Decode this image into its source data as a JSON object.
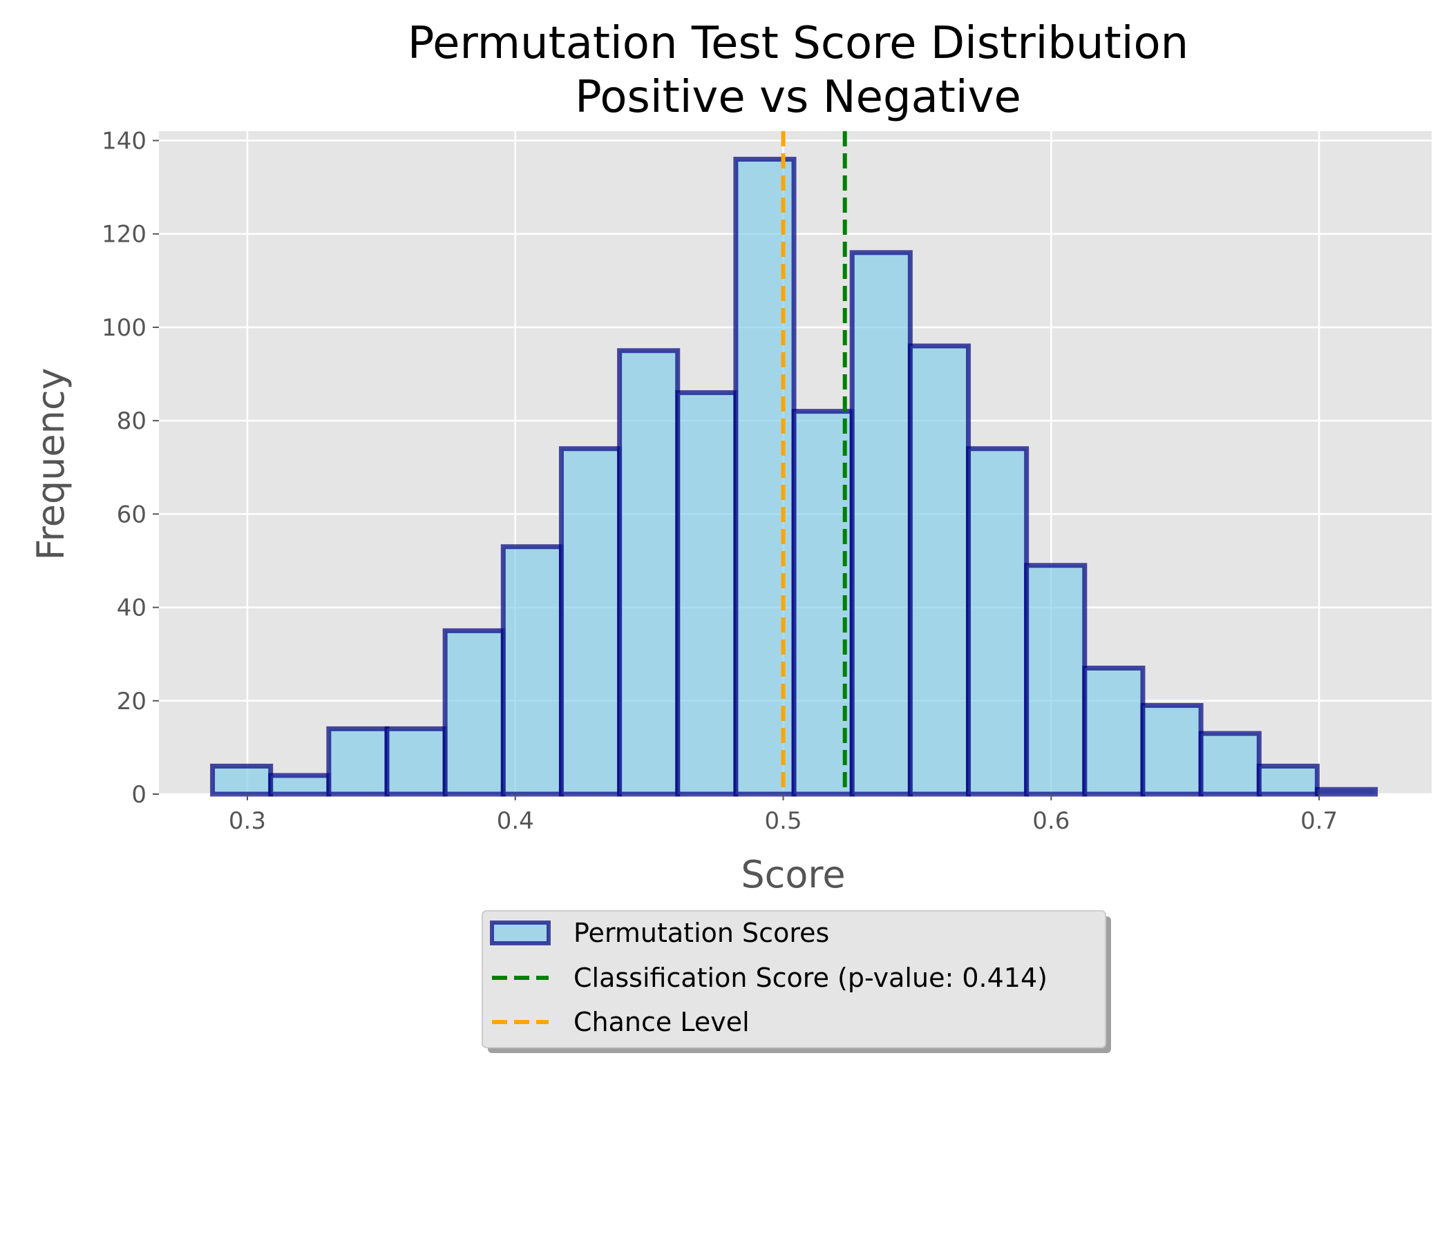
{
  "chart_data": {
    "type": "bar",
    "title": "Permutation Test Score Distribution",
    "subtitle": "Positive vs Negative",
    "xlabel": "Score",
    "ylabel": "Frequency",
    "xlim": [
      0.267,
      0.742
    ],
    "ylim": [
      0,
      142
    ],
    "xticks": [
      "0.3",
      "0.4",
      "0.5",
      "0.6",
      "0.7"
    ],
    "yticks": [
      "0",
      "20",
      "40",
      "60",
      "80",
      "100",
      "120",
      "140"
    ],
    "grid": true,
    "legend_position": "below plot, center",
    "bin_edges": [
      0.287,
      0.3087,
      0.3304,
      0.3521,
      0.3738,
      0.3955,
      0.4172,
      0.4389,
      0.4606,
      0.4823,
      0.504,
      0.5257,
      0.5474,
      0.5691,
      0.5908,
      0.6125,
      0.6342,
      0.6559,
      0.6776,
      0.6993,
      0.721
    ],
    "counts": [
      6,
      4,
      14,
      14,
      35,
      53,
      74,
      95,
      86,
      136,
      82,
      116,
      96,
      74,
      49,
      27,
      19,
      13,
      6,
      1
    ],
    "series": [
      {
        "name": "Permutation Scores",
        "kind": "histogram",
        "color": "#87ceeb",
        "edge_color": "#000080"
      },
      {
        "name": "Classification Score (p-value: 0.414)",
        "kind": "vline",
        "x": 0.523,
        "color": "#008000"
      },
      {
        "name": "Chance Level",
        "kind": "vline",
        "x": 0.5,
        "color": "#ffa500"
      }
    ]
  }
}
